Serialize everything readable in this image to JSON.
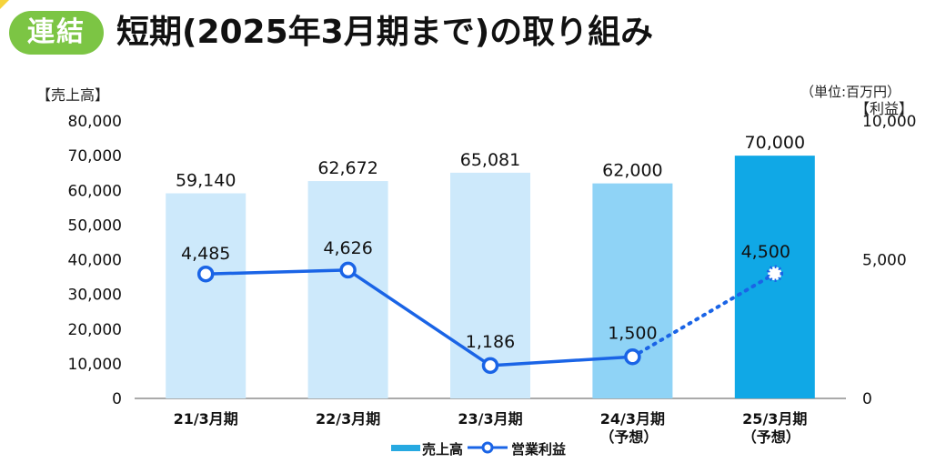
{
  "header": {
    "badge": "連結",
    "title": "短期(2025年3月期まで)の取り組み"
  },
  "unit_note": "（単位:百万円）",
  "colors": {
    "bar_actual": "#cde9fb",
    "bar_forecast_24": "#8fd3f6",
    "bar_forecast_25": "#10a8e6",
    "line": "#1a64e6",
    "badge": "#7cc544",
    "legend_bar": "#27a9e1"
  },
  "chart_data": {
    "type": "bar",
    "title": "",
    "categories": [
      "21/3月期",
      "22/3月期",
      "23/3月期",
      "24/3月期",
      "25/3月期"
    ],
    "category_sublabels": [
      "",
      "",
      "",
      "（予想）",
      "（予想）"
    ],
    "y_left_label": "【売上高】",
    "y_right_label": "【利益】",
    "ylim_left": [
      0,
      80000
    ],
    "ylim_right": [
      0,
      10000
    ],
    "yticks_left": [
      "80,000",
      "70,000",
      "60,000",
      "50,000",
      "40,000",
      "30,000",
      "20,000",
      "10,000",
      "0"
    ],
    "yticks_right": [
      "10,000",
      "5,000",
      "0"
    ],
    "series": [
      {
        "name": "売上高",
        "type": "bar",
        "axis": "left",
        "values": [
          59140,
          62672,
          65081,
          62000,
          70000
        ],
        "labels": [
          "59,140",
          "62,672",
          "65,081",
          "62,000",
          "70,000"
        ]
      },
      {
        "name": "営業利益",
        "type": "line",
        "axis": "right",
        "values": [
          4485,
          4626,
          1186,
          1500,
          4500
        ],
        "labels": [
          "4,485",
          "4,626",
          "1,186",
          "1,500",
          "4,500"
        ],
        "forecast_from_index": 3
      }
    ],
    "grid": false,
    "legend": "bottom-center"
  }
}
